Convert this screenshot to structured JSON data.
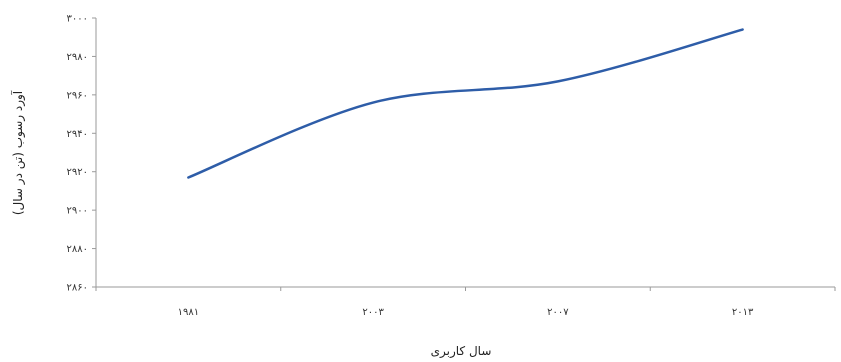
{
  "chart_data": {
    "type": "line",
    "categories": [
      "۱۹۸۱",
      "۲۰۰۳",
      "۲۰۰۷",
      "۲۰۱۳"
    ],
    "series": [
      {
        "values": [
          2917,
          2956,
          2967,
          2994
        ],
        "color": "#2e5da8"
      }
    ],
    "xlabel": "سال کاربری",
    "ylabel": "آورد رسوب (تن در سال)",
    "ylim": [
      2860,
      3000
    ],
    "yticks": [
      2860,
      2880,
      2900,
      2920,
      2940,
      2960,
      2980,
      3000
    ],
    "ytick_labels": [
      "۲۸۶۰",
      "۲۸۸۰",
      "۲۹۰۰",
      "۲۹۲۰",
      "۲۹۴۰",
      "۲۹۶۰",
      "۲۹۸۰",
      "۳۰۰۰"
    ],
    "grid": false,
    "legend": "none"
  }
}
